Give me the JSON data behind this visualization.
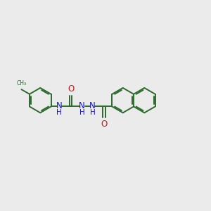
{
  "background_color": "#ebebeb",
  "bond_color": "#2d6b2d",
  "N_color": "#1515cc",
  "O_color": "#cc1515",
  "line_width": 1.4,
  "figsize": [
    3.0,
    3.0
  ],
  "dpi": 100,
  "xlim": [
    0,
    10
  ],
  "ylim": [
    1,
    7
  ]
}
